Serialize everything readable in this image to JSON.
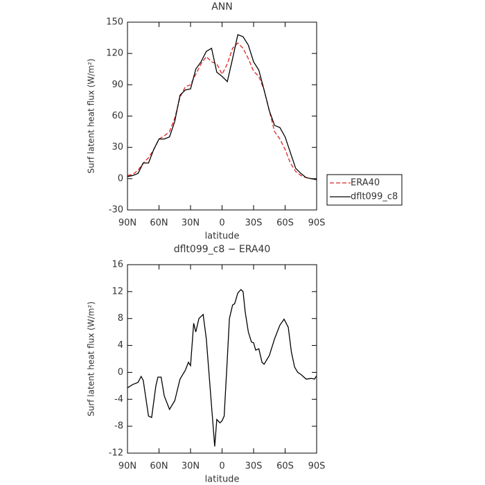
{
  "chart_data": [
    {
      "type": "line",
      "title": "ANN",
      "x_label": "latitude",
      "y_label": "Surf latent heat flux (W/m²)",
      "x": [
        90,
        85,
        80,
        75,
        70,
        65,
        60,
        55,
        50,
        45,
        40,
        35,
        30,
        25,
        20,
        15,
        10,
        5,
        0,
        -5,
        -10,
        -15,
        -20,
        -25,
        -30,
        -35,
        -40,
        -45,
        -50,
        -55,
        -60,
        -65,
        -70,
        -75,
        -80,
        -85,
        -90
      ],
      "series": [
        {
          "name": "ERA40",
          "color": "#e02020",
          "linestyle": "dashed",
          "values": [
            3,
            4,
            8,
            15,
            20,
            28,
            38,
            41,
            45,
            58,
            78,
            88,
            90,
            100,
            110,
            117,
            112,
            110,
            100,
            110,
            125,
            130,
            125,
            115,
            103,
            98,
            85,
            65,
            45,
            38,
            28,
            15,
            7,
            3,
            1,
            0,
            -1
          ]
        },
        {
          "name": "dflt099_c8",
          "color": "#000000",
          "linestyle": "solid",
          "values": [
            2,
            3,
            5,
            15,
            15,
            28,
            38,
            38,
            40,
            55,
            80,
            85,
            86,
            105,
            112,
            122,
            125,
            102,
            98,
            93,
            115,
            138,
            136,
            128,
            112,
            104,
            85,
            65,
            51,
            49,
            40,
            25,
            10,
            5,
            1,
            0,
            -1
          ]
        }
      ],
      "xlim": [
        90,
        -90
      ],
      "xticks": [
        {
          "value": 90,
          "label": "90N"
        },
        {
          "value": 60,
          "label": "60N"
        },
        {
          "value": 30,
          "label": "30N"
        },
        0,
        {
          "value": -30,
          "label": "30S"
        },
        {
          "value": -60,
          "label": "60S"
        },
        {
          "value": -90,
          "label": "90S"
        }
      ],
      "ylim": [
        -30,
        150
      ],
      "yticks": [
        -30,
        0,
        30,
        60,
        90,
        120,
        150
      ],
      "legend": "right"
    },
    {
      "type": "line",
      "title": "dflt099_c8 − ERA40",
      "x_label": "latitude",
      "y_label": "Surf latent heat flux (W/m²)",
      "x": [
        90,
        85,
        80,
        77,
        75,
        70,
        67,
        63,
        61,
        58,
        55,
        50,
        45,
        40,
        35,
        32,
        30,
        27,
        25,
        22,
        18,
        15,
        10,
        7,
        5,
        2,
        0,
        -2,
        -5,
        -7,
        -10,
        -12,
        -15,
        -18,
        -20,
        -22,
        -25,
        -28,
        -30,
        -32,
        -35,
        -38,
        -40,
        -45,
        -50,
        -55,
        -59,
        -63,
        -66,
        -69,
        -72,
        -75,
        -80,
        -85,
        -88,
        -90
      ],
      "values": [
        -2.3,
        -1.8,
        -1.5,
        -0.6,
        -1.2,
        -6.5,
        -6.7,
        -2,
        -0.7,
        -0.7,
        -3.5,
        -5.5,
        -4.2,
        -1,
        0.3,
        1.5,
        1,
        7.3,
        6,
        8,
        8.6,
        5,
        -5,
        -11,
        -7,
        -7.5,
        -7.2,
        -6.5,
        2,
        8,
        10,
        10.2,
        11.8,
        12.3,
        12,
        9,
        6,
        4.5,
        4.4,
        3.3,
        3.5,
        1.5,
        1.2,
        2.5,
        5,
        7,
        7.9,
        6.7,
        3,
        0.8,
        0,
        -0.3,
        -1,
        -0.9,
        -1,
        -0.5
      ],
      "color": "#000000",
      "xlim": [
        90,
        -90
      ],
      "xticks": [
        {
          "value": 90,
          "label": "90N"
        },
        {
          "value": 60,
          "label": "60N"
        },
        {
          "value": 30,
          "label": "30N"
        },
        0,
        {
          "value": -30,
          "label": "30S"
        },
        {
          "value": -60,
          "label": "60S"
        },
        {
          "value": -90,
          "label": "90S"
        }
      ],
      "ylim": [
        -12,
        16
      ],
      "yticks": [
        -12,
        -8,
        -4,
        0,
        4,
        8,
        12,
        16
      ]
    }
  ]
}
